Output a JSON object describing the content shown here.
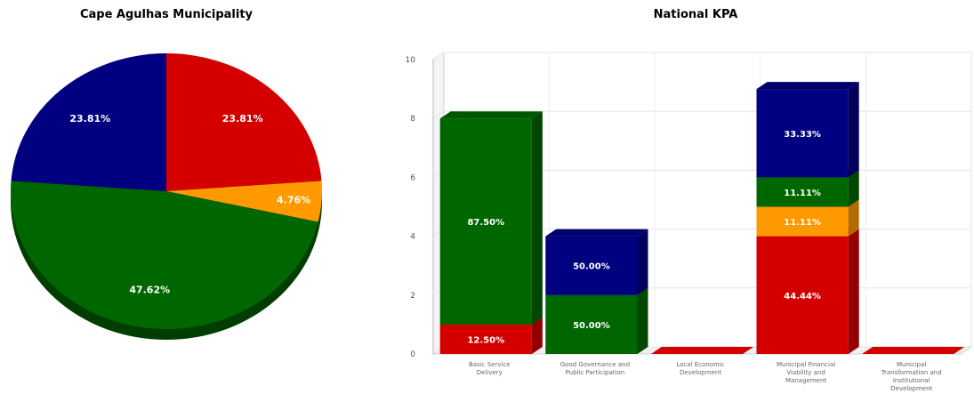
{
  "colors": {
    "red": "#d40000",
    "orange": "#ff9900",
    "green": "#006600",
    "navy": "#000080"
  },
  "chart_data": [
    {
      "type": "pie",
      "title": "Cape Agulhas Municipality",
      "slices": [
        {
          "label": "23.81%",
          "value": 23.81,
          "color": "red"
        },
        {
          "label": "4.76%",
          "value": 4.76,
          "color": "orange"
        },
        {
          "label": "47.62%",
          "value": 47.62,
          "color": "green"
        },
        {
          "label": "23.81%",
          "value": 23.81,
          "color": "navy"
        }
      ]
    },
    {
      "type": "bar",
      "stacked": true,
      "title": "National KPA",
      "ylim": [
        0,
        10
      ],
      "yticks": [
        0,
        2,
        4,
        6,
        8,
        10
      ],
      "grid": true,
      "categories": [
        [
          "Basic Service",
          "Delivery"
        ],
        [
          "Good Governance and",
          "Public Participation"
        ],
        [
          "Local Economic",
          "Development"
        ],
        [
          "Municipal Financial",
          "Viability and",
          "Management"
        ],
        [
          "Municipal",
          "Transformation and",
          "Institutional",
          "Development"
        ]
      ],
      "series": [
        {
          "color": "red",
          "values": [
            1,
            0,
            0,
            4,
            0
          ],
          "labels": [
            "12.50%",
            "",
            "",
            "44.44%",
            ""
          ]
        },
        {
          "color": "orange",
          "values": [
            0,
            0,
            0,
            1,
            0
          ],
          "labels": [
            "",
            "",
            "",
            "11.11%",
            ""
          ]
        },
        {
          "color": "green",
          "values": [
            7,
            2,
            0,
            1,
            0
          ],
          "labels": [
            "87.50%",
            "50.00%",
            "",
            "11.11%",
            ""
          ]
        },
        {
          "color": "navy",
          "values": [
            0,
            2,
            0,
            3,
            0
          ],
          "labels": [
            "",
            "50.00%",
            "",
            "33.33%",
            ""
          ]
        }
      ]
    }
  ]
}
